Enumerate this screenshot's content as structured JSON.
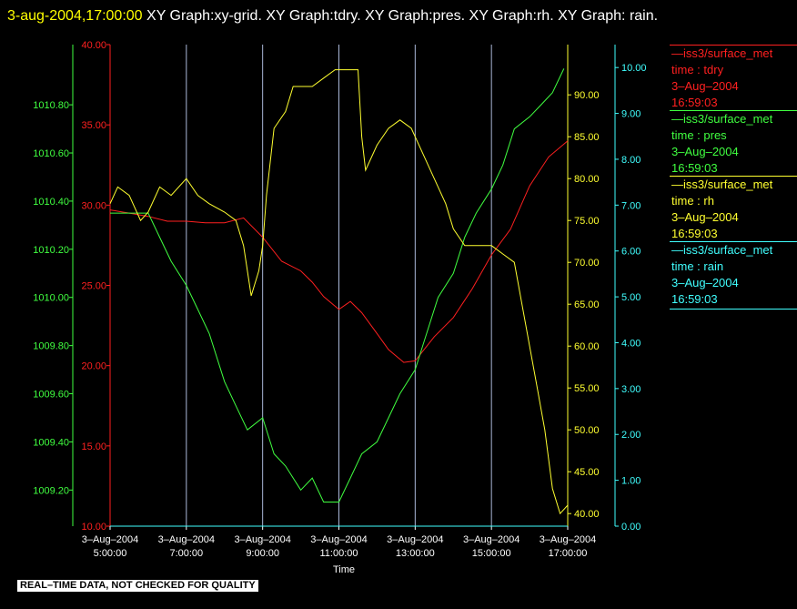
{
  "header": {
    "timestamp": "3-aug-2004,17:00:00",
    "description": " XY Graph:xy-grid.  XY Graph:tdry.  XY Graph:pres.  XY Graph:rh.  XY Graph: rain."
  },
  "footer_note": "REAL–TIME DATA, NOT CHECKED FOR QUALITY",
  "legend": [
    {
      "source": "—iss3/surface_met",
      "param": "time : tdry",
      "date": "3–Aug–2004",
      "time": "16:59:03",
      "color": "#ff2020"
    },
    {
      "source": "—iss3/surface_met",
      "param": "time : pres",
      "date": "3–Aug–2004",
      "time": "16:59:03",
      "color": "#40ff40"
    },
    {
      "source": "—iss3/surface_met",
      "param": "time : rh",
      "date": "3–Aug–2004",
      "time": "16:59:03",
      "color": "#ffff30"
    },
    {
      "source": "—iss3/surface_met",
      "param": "time : rain",
      "date": "3–Aug–2004",
      "time": "16:59:03",
      "color": "#40ffff"
    }
  ],
  "chart_data": {
    "type": "line",
    "xlabel": "Time",
    "x_ticks": [
      {
        "date": "3–Aug–2004",
        "time": "5:00:00",
        "hour": 5
      },
      {
        "date": "3–Aug–2004",
        "time": "7:00:00",
        "hour": 7
      },
      {
        "date": "3–Aug–2004",
        "time": "9:00:00",
        "hour": 9
      },
      {
        "date": "3–Aug–2004",
        "time": "11:00:00",
        "hour": 11
      },
      {
        "date": "3–Aug–2004",
        "time": "13:00:00",
        "hour": 13
      },
      {
        "date": "3–Aug–2004",
        "time": "15:00:00",
        "hour": 15
      },
      {
        "date": "3–Aug–2004",
        "time": "17:00:00",
        "hour": 17
      }
    ],
    "xlim": [
      5,
      17
    ],
    "grid": "vertical",
    "axes": [
      {
        "id": "pres",
        "color": "#40ff40",
        "ylim": [
          1009.05,
          1011.05
        ],
        "ticks": [
          "1009.20",
          "1009.40",
          "1009.60",
          "1009.80",
          "1010.00",
          "1010.20",
          "1010.40",
          "1010.60",
          "1010.80"
        ]
      },
      {
        "id": "tdry",
        "color": "#ff2020",
        "ylim": [
          10,
          40
        ],
        "ticks": [
          "10.00",
          "15.00",
          "20.00",
          "25.00",
          "30.00",
          "35.00",
          "40.00"
        ]
      },
      {
        "id": "rh",
        "color": "#ffff30",
        "ylim": [
          38.5,
          96
        ],
        "ticks": [
          "40.00",
          "45.00",
          "50.00",
          "55.00",
          "60.00",
          "65.00",
          "70.00",
          "75.00",
          "80.00",
          "85.00",
          "90.00"
        ]
      },
      {
        "id": "rain",
        "color": "#40ffff",
        "ylim": [
          0,
          10.5
        ],
        "ticks": [
          "0.00",
          "1.00",
          "2.00",
          "3.00",
          "4.00",
          "5.00",
          "6.00",
          "7.00",
          "8.00",
          "9.00",
          "10.00"
        ]
      }
    ],
    "series": [
      {
        "axis": "tdry",
        "color": "#ff2020",
        "x": [
          5.0,
          5.5,
          6.0,
          6.5,
          7.0,
          7.5,
          8.0,
          8.5,
          9.0,
          9.5,
          10.0,
          10.3,
          10.6,
          11.0,
          11.3,
          11.6,
          12.0,
          12.3,
          12.7,
          13.0,
          13.5,
          14.0,
          14.5,
          15.0,
          15.5,
          16.0,
          16.5,
          17.0
        ],
        "y": [
          29.7,
          29.5,
          29.3,
          29.0,
          29.0,
          28.9,
          28.9,
          29.2,
          28.0,
          26.5,
          25.9,
          25.2,
          24.3,
          23.5,
          24.0,
          23.3,
          22.0,
          21.0,
          20.2,
          20.3,
          21.8,
          23.0,
          24.8,
          26.9,
          28.5,
          31.2,
          33.0,
          34.0
        ]
      },
      {
        "axis": "pres",
        "color": "#40ff40",
        "x": [
          5.0,
          5.5,
          6.0,
          6.3,
          6.6,
          7.0,
          7.3,
          7.6,
          8.0,
          8.3,
          8.6,
          9.0,
          9.3,
          9.6,
          10.0,
          10.3,
          10.6,
          11.0,
          11.3,
          11.6,
          12.0,
          12.3,
          12.6,
          13.0,
          13.3,
          13.6,
          14.0,
          14.3,
          14.6,
          15.0,
          15.3,
          15.6,
          16.0,
          16.3,
          16.6,
          16.9
        ],
        "y": [
          1010.35,
          1010.35,
          1010.35,
          1010.25,
          1010.15,
          1010.05,
          1009.95,
          1009.85,
          1009.65,
          1009.55,
          1009.45,
          1009.5,
          1009.35,
          1009.3,
          1009.2,
          1009.25,
          1009.15,
          1009.15,
          1009.25,
          1009.35,
          1009.4,
          1009.5,
          1009.6,
          1009.7,
          1009.85,
          1010.0,
          1010.1,
          1010.25,
          1010.35,
          1010.45,
          1010.55,
          1010.7,
          1010.75,
          1010.8,
          1010.85,
          1010.95
        ]
      },
      {
        "axis": "rh",
        "color": "#ffff30",
        "x": [
          5.0,
          5.2,
          5.5,
          5.8,
          6.0,
          6.3,
          6.6,
          7.0,
          7.3,
          7.6,
          8.0,
          8.3,
          8.5,
          8.7,
          8.9,
          9.0,
          9.1,
          9.3,
          9.6,
          9.8,
          10.0,
          10.3,
          10.6,
          10.9,
          11.2,
          11.5,
          11.6,
          11.7,
          12.0,
          12.3,
          12.6,
          12.9,
          13.0,
          13.2,
          13.5,
          13.8,
          14.0,
          14.3,
          14.6,
          15.0,
          15.3,
          15.6,
          15.8,
          16.0,
          16.2,
          16.4,
          16.6,
          16.8,
          17.0
        ],
        "y": [
          77,
          79,
          78,
          75,
          76,
          79,
          78,
          80,
          78,
          77,
          76,
          75,
          72,
          66,
          69,
          72,
          78,
          86,
          88,
          91,
          91,
          91,
          92,
          93,
          93,
          93,
          85,
          81,
          84,
          86,
          87,
          86,
          85,
          83,
          80,
          77,
          74,
          72,
          72,
          72,
          71,
          70,
          65,
          60,
          55,
          50,
          43,
          40,
          41
        ]
      },
      {
        "axis": "rain",
        "color": "#40ffff",
        "x": [
          5.0,
          17.0
        ],
        "y": [
          0.0,
          0.0
        ]
      }
    ]
  }
}
